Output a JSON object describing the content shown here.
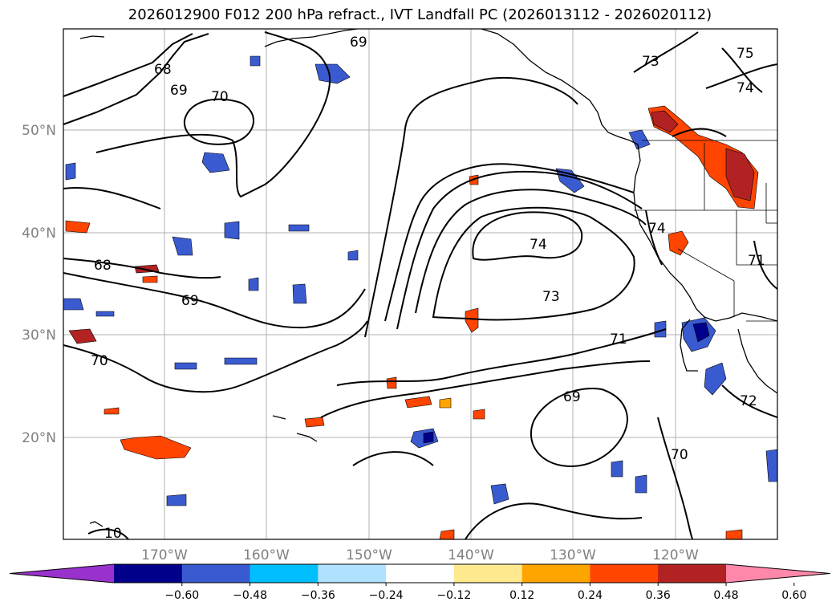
{
  "title": "2026012900 F012 200 hPa refract., IVT Landfall PC (2026013112 - 2026020112)",
  "map": {
    "lat_ticks": [
      "50°N",
      "40°N",
      "30°N",
      "20°N"
    ],
    "lon_ticks": [
      "170°W",
      "160°W",
      "150°W",
      "140°W",
      "130°W",
      "120°W"
    ],
    "gridlines": true,
    "contour_labels": [
      "68",
      "69",
      "70",
      "68",
      "69",
      "70",
      "74",
      "73",
      "71",
      "69",
      "70",
      "72",
      "74",
      "71",
      "73",
      "75",
      "74",
      "69",
      "10"
    ]
  },
  "colorbar": {
    "levels": [
      "−0.60",
      "−0.48",
      "−0.36",
      "−0.24",
      "−0.12",
      "0.12",
      "0.24",
      "0.36",
      "0.48",
      "0.60"
    ],
    "colors": [
      "#9932cc",
      "#00008b",
      "#3a5bd0",
      "#00bfff",
      "#b0e2ff",
      "#ffffff",
      "#ffe98f",
      "#ffa500",
      "#ff4500",
      "#b22222",
      "#ff88aa"
    ],
    "extend": "both"
  }
}
